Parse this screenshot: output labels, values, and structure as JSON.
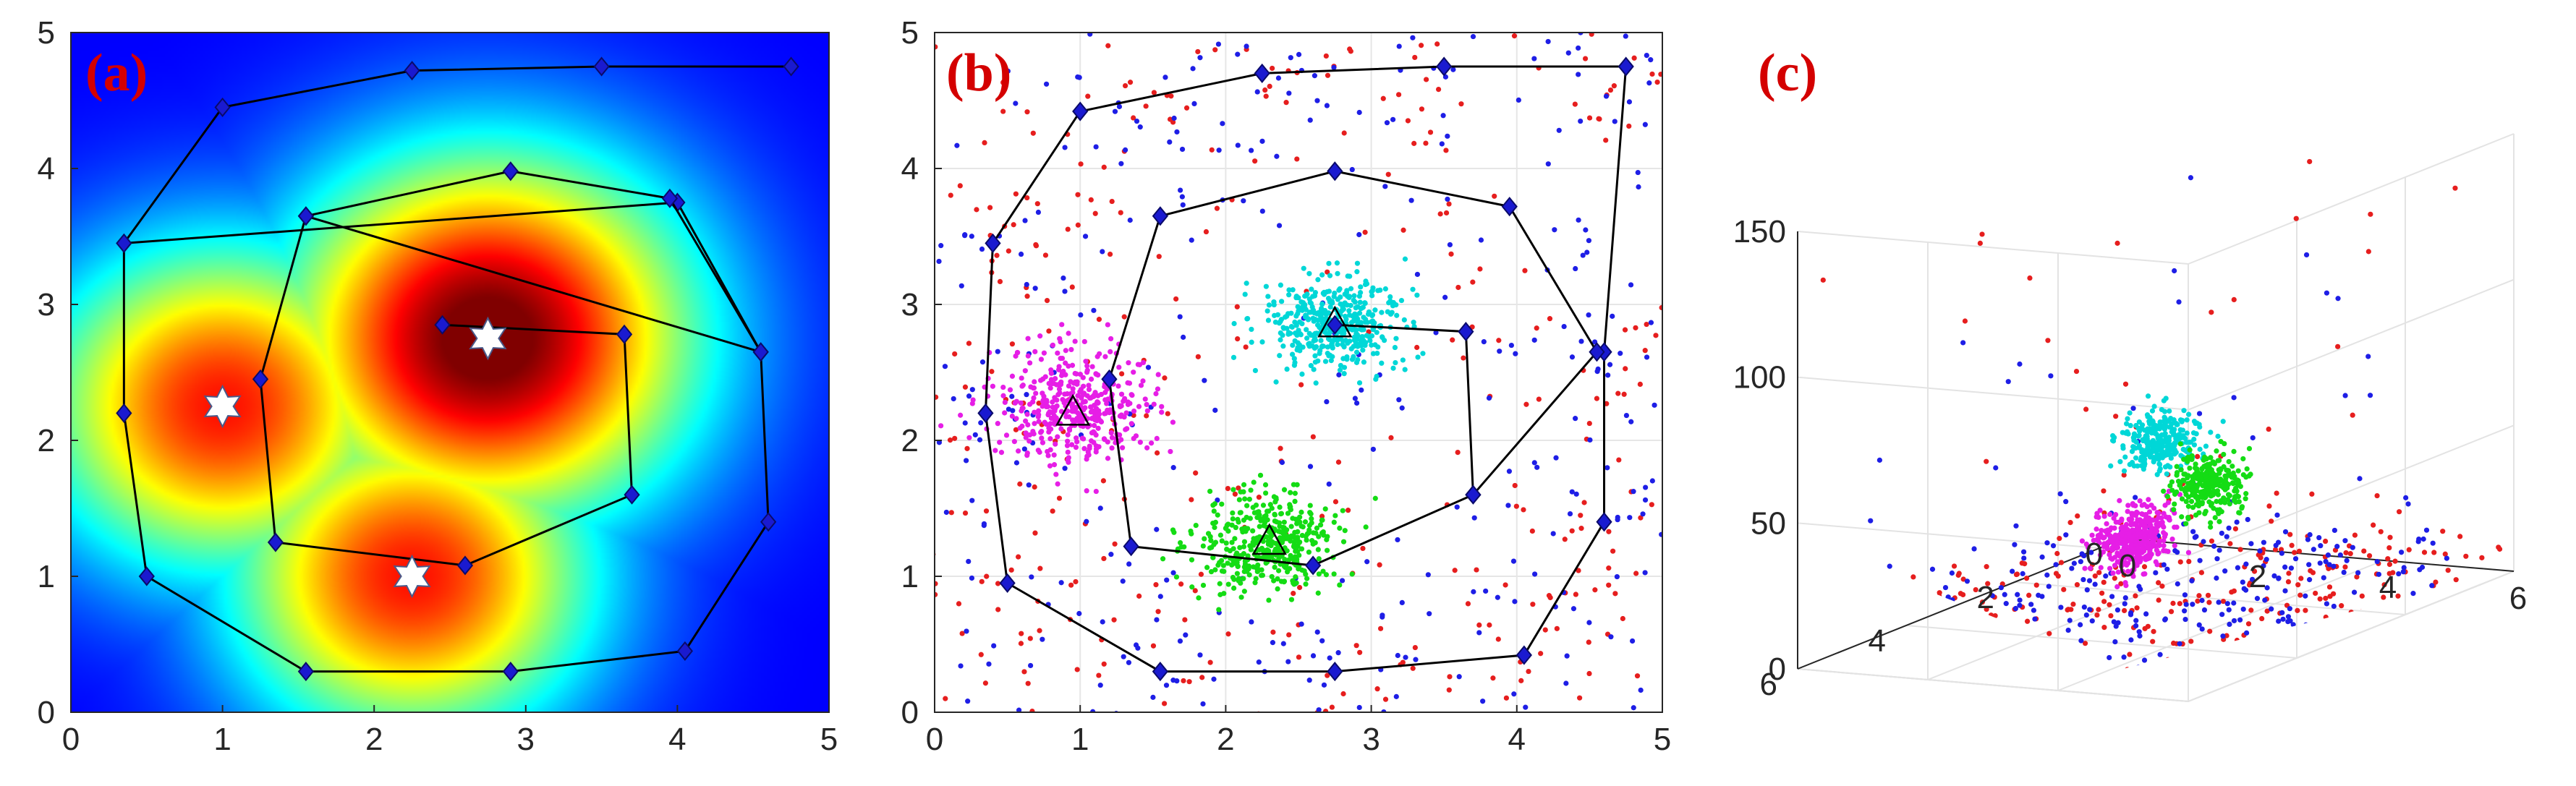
{
  "chart_data": [
    {
      "panel_label": "(a)",
      "type": "heatmap",
      "colormap": "jet",
      "xlim": [
        0,
        5
      ],
      "ylim": [
        0,
        5
      ],
      "xticks": [
        "0",
        "1",
        "2",
        "3",
        "4",
        "5"
      ],
      "yticks": [
        "0",
        "1",
        "2",
        "3",
        "4",
        "5"
      ],
      "heat_peaks": [
        {
          "x": 2.75,
          "y": 2.75,
          "amp": 1.0,
          "sigma": 0.95
        },
        {
          "x": 1.0,
          "y": 2.25,
          "amp": 0.8,
          "sigma": 0.85
        },
        {
          "x": 2.25,
          "y": 1.0,
          "amp": 0.8,
          "sigma": 0.85
        }
      ],
      "stars": [
        [
          2.75,
          2.75
        ],
        [
          1.0,
          2.25
        ],
        [
          2.25,
          1.0
        ]
      ],
      "loops": [
        {
          "closed": false,
          "points": [
            [
              0.35,
              3.45
            ],
            [
              1.0,
              4.45
            ],
            [
              2.25,
              4.72
            ],
            [
              3.5,
              4.75
            ],
            [
              4.75,
              4.75
            ]
          ]
        },
        {
          "closed": true,
          "points": [
            [
              0.35,
              3.45
            ],
            [
              0.35,
              2.2
            ],
            [
              0.5,
              1.0
            ],
            [
              1.55,
              0.3
            ],
            [
              2.9,
              0.3
            ],
            [
              4.05,
              0.45
            ],
            [
              4.6,
              1.4
            ],
            [
              4.55,
              2.65
            ],
            [
              4.0,
              3.75
            ]
          ]
        },
        {
          "closed": true,
          "points": [
            [
              1.55,
              3.65
            ],
            [
              2.9,
              3.98
            ],
            [
              3.95,
              3.78
            ],
            [
              4.55,
              2.65
            ]
          ]
        },
        {
          "closed": false,
          "points": [
            [
              1.55,
              3.65
            ],
            [
              1.25,
              2.45
            ],
            [
              1.35,
              1.25
            ],
            [
              2.6,
              1.08
            ],
            [
              3.7,
              1.6
            ],
            [
              3.65,
              2.78
            ],
            [
              2.45,
              2.85
            ]
          ]
        }
      ]
    },
    {
      "panel_label": "(b)",
      "type": "scatter",
      "xlim": [
        0,
        5
      ],
      "ylim": [
        0,
        5
      ],
      "xticks": [
        "0",
        "1",
        "2",
        "3",
        "4",
        "5"
      ],
      "yticks": [
        "0",
        "1",
        "2",
        "3",
        "4",
        "5"
      ],
      "clusters": [
        {
          "color": "#e61ee6",
          "cx": 0.95,
          "cy": 2.25,
          "sx": 0.28,
          "sy": 0.22,
          "n": 420
        },
        {
          "color": "#00d7d7",
          "cx": 2.75,
          "cy": 2.85,
          "sx": 0.22,
          "sy": 0.18,
          "n": 420
        },
        {
          "color": "#14dc14",
          "cx": 2.3,
          "cy": 1.25,
          "sx": 0.24,
          "sy": 0.18,
          "n": 420
        }
      ],
      "centers": [
        [
          0.95,
          2.2
        ],
        [
          2.75,
          2.85
        ],
        [
          2.3,
          1.25
        ]
      ],
      "noise": [
        {
          "color": "#e61e1e",
          "n": 360
        },
        {
          "color": "#1e1ee6",
          "n": 360
        }
      ],
      "loops": [
        {
          "closed": true,
          "points": [
            [
              0.4,
              3.45
            ],
            [
              1.0,
              4.42
            ],
            [
              2.25,
              4.7
            ],
            [
              3.5,
              4.75
            ],
            [
              4.75,
              4.75
            ],
            [
              4.6,
              2.65
            ],
            [
              4.6,
              1.4
            ],
            [
              4.05,
              0.42
            ],
            [
              2.75,
              0.3
            ],
            [
              1.55,
              0.3
            ],
            [
              0.5,
              0.95
            ],
            [
              0.35,
              2.2
            ]
          ]
        },
        {
          "closed": true,
          "points": [
            [
              1.55,
              3.65
            ],
            [
              2.75,
              3.98
            ],
            [
              3.95,
              3.72
            ],
            [
              4.55,
              2.65
            ],
            [
              3.7,
              1.6
            ],
            [
              2.6,
              1.08
            ],
            [
              1.35,
              1.22
            ],
            [
              1.2,
              2.45
            ]
          ]
        },
        {
          "closed": false,
          "points": [
            [
              2.75,
              2.85
            ],
            [
              3.65,
              2.8
            ],
            [
              3.7,
              1.6
            ]
          ]
        }
      ]
    },
    {
      "panel_label": "(c)",
      "type": "scatter",
      "xlim": [
        0,
        6
      ],
      "ylim": [
        0,
        6
      ],
      "zlim": [
        0,
        150
      ],
      "xticks": [
        "0",
        "2",
        "4",
        "6"
      ],
      "yticks": [
        "0",
        "2",
        "4",
        "6"
      ],
      "zticks": [
        "0",
        "50",
        "100",
        "150"
      ],
      "clusters": [
        {
          "color": "#e61ee6",
          "x": 2.0,
          "y": 2.2,
          "z": 20,
          "n": 420
        },
        {
          "color": "#00d7d7",
          "x": 2.9,
          "y": 2.8,
          "z": 60,
          "n": 300
        },
        {
          "color": "#14dc14",
          "x": 3.5,
          "y": 2.6,
          "z": 45,
          "n": 300
        }
      ],
      "noise": [
        {
          "color": "#e61e1e",
          "n": 300
        },
        {
          "color": "#1e1ee6",
          "n": 300
        }
      ]
    }
  ]
}
